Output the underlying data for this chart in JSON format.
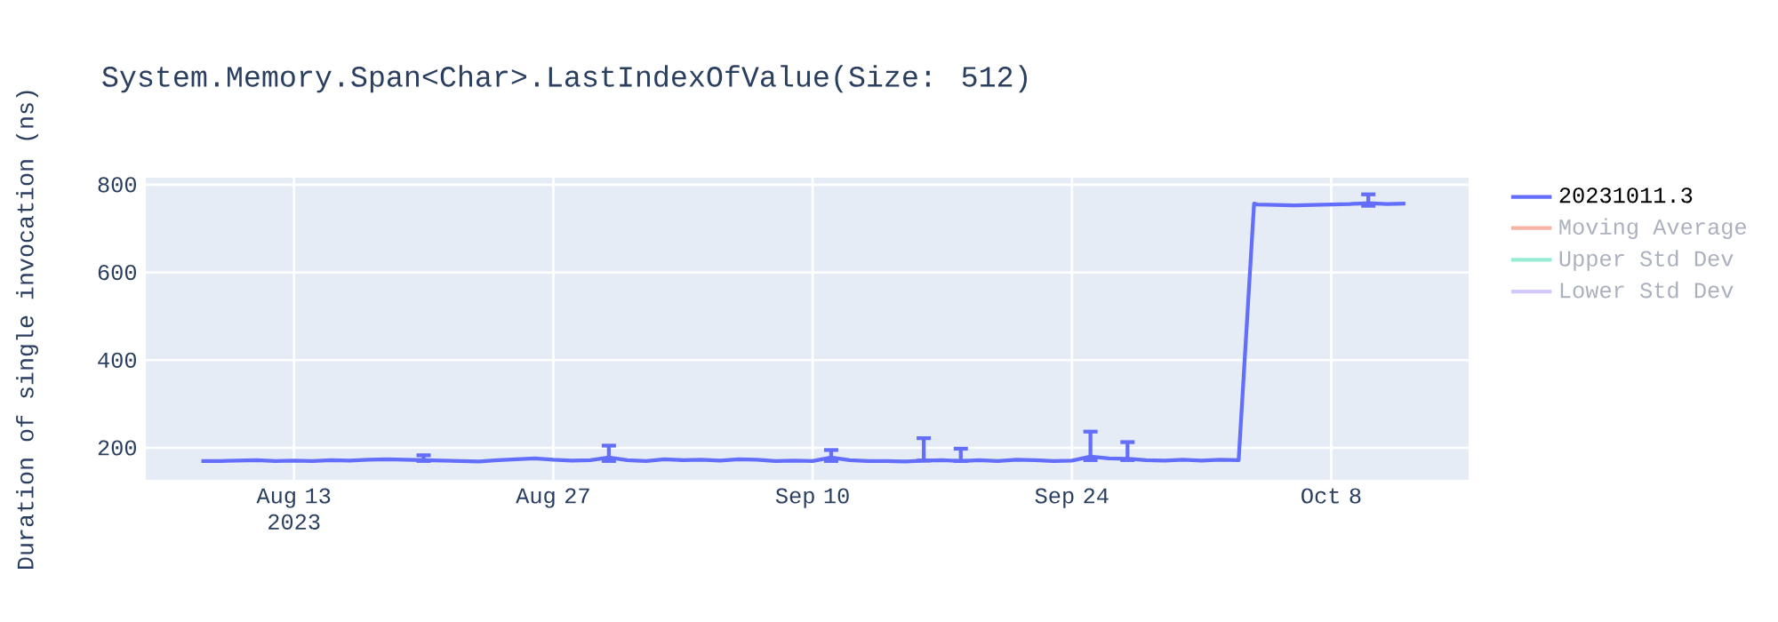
{
  "chart_data": {
    "type": "line",
    "title": "System.Memory.Span<Char>.LastIndexOfValue(Size: 512)",
    "ylabel": "Duration of single invocation (ns)",
    "xlim": [
      "2023-08-05",
      "2023-10-15T10:00"
    ],
    "ylim": [
      127,
      816
    ],
    "xticks": [
      {
        "value": "2023-08-13",
        "label": "Aug 13 2023"
      },
      {
        "value": "2023-08-27",
        "label": "Aug 27"
      },
      {
        "value": "2023-09-10",
        "label": "Sep 10"
      },
      {
        "value": "2023-09-24",
        "label": "Sep 24"
      },
      {
        "value": "2023-10-08",
        "label": "Oct 8"
      }
    ],
    "yticks": [
      200,
      400,
      600,
      800
    ],
    "grid": true,
    "legend": "top right",
    "series": [
      {
        "name": "20231011.3",
        "color": "#636efa",
        "x": [
          "2023-08-08",
          "2023-08-09",
          "2023-08-10",
          "2023-08-11",
          "2023-08-12",
          "2023-08-13",
          "2023-08-14",
          "2023-08-15",
          "2023-08-16",
          "2023-08-17",
          "2023-08-18",
          "2023-08-19",
          "2023-08-20",
          "2023-08-21",
          "2023-08-22",
          "2023-08-23",
          "2023-08-24",
          "2023-08-25",
          "2023-08-26",
          "2023-08-27",
          "2023-08-28",
          "2023-08-29",
          "2023-08-30",
          "2023-08-31",
          "2023-09-01",
          "2023-09-02",
          "2023-09-03",
          "2023-09-04",
          "2023-09-05",
          "2023-09-06",
          "2023-09-07",
          "2023-09-08",
          "2023-09-09",
          "2023-09-10",
          "2023-09-11",
          "2023-09-12",
          "2023-09-13",
          "2023-09-14",
          "2023-09-15",
          "2023-09-16",
          "2023-09-17",
          "2023-09-18",
          "2023-09-19",
          "2023-09-20",
          "2023-09-21",
          "2023-09-22",
          "2023-09-23",
          "2023-09-24",
          "2023-09-25",
          "2023-09-26",
          "2023-09-27",
          "2023-09-28",
          "2023-09-29",
          "2023-09-30",
          "2023-10-01",
          "2023-10-02",
          "2023-10-03",
          "2023-10-03T20:00",
          "2023-10-04",
          "2023-10-05",
          "2023-10-06",
          "2023-10-07",
          "2023-10-08",
          "2023-10-09",
          "2023-10-10",
          "2023-10-11",
          "2023-10-12"
        ],
        "values": [
          170,
          170,
          171,
          172,
          170,
          171,
          170,
          172,
          171,
          173,
          174,
          173,
          172,
          171,
          170,
          169,
          172,
          174,
          176,
          173,
          171,
          172,
          178,
          172,
          170,
          174,
          172,
          173,
          171,
          174,
          173,
          170,
          171,
          170,
          178,
          172,
          170,
          170,
          169,
          171,
          172,
          170,
          172,
          170,
          173,
          172,
          170,
          171,
          180,
          176,
          175,
          172,
          171,
          173,
          171,
          173,
          172,
          757,
          755,
          754,
          753,
          754,
          755,
          756,
          758,
          756,
          757
        ],
        "errors": [
          null,
          null,
          null,
          null,
          null,
          null,
          null,
          null,
          null,
          null,
          null,
          null,
          [
            170,
            183
          ],
          null,
          null,
          null,
          null,
          null,
          null,
          null,
          null,
          null,
          [
            170,
            205
          ],
          null,
          null,
          null,
          null,
          null,
          null,
          null,
          null,
          null,
          null,
          null,
          [
            170,
            195
          ],
          null,
          null,
          null,
          null,
          [
            171,
            222
          ],
          null,
          [
            170,
            198
          ],
          null,
          null,
          null,
          null,
          null,
          null,
          [
            172,
            237
          ],
          null,
          [
            172,
            213
          ],
          null,
          null,
          null,
          null,
          null,
          null,
          null,
          null,
          null,
          null,
          null,
          null,
          null,
          [
            752,
            778
          ],
          null,
          null
        ]
      },
      {
        "name": "Moving Average",
        "color": "#f7b3a6"
      },
      {
        "name": "Upper Std Dev",
        "color": "#95ecd2"
      },
      {
        "name": "Lower Std Dev",
        "color": "#d5c8fd"
      }
    ]
  }
}
